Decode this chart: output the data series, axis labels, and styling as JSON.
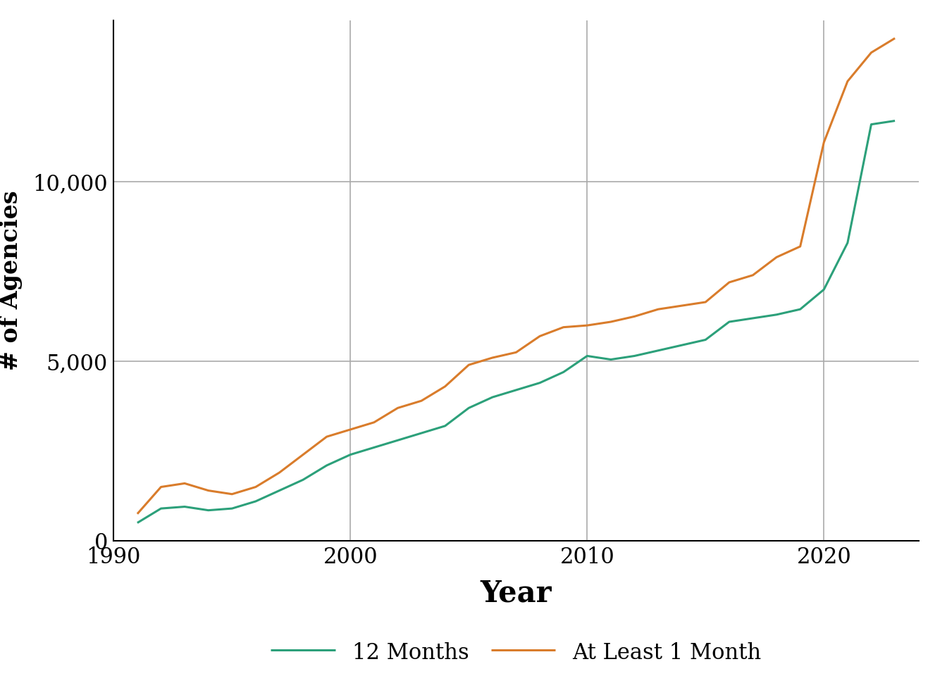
{
  "years_12months": [
    1991,
    1992,
    1993,
    1994,
    1995,
    1996,
    1997,
    1998,
    1999,
    2000,
    2001,
    2002,
    2003,
    2004,
    2005,
    2006,
    2007,
    2008,
    2009,
    2010,
    2011,
    2012,
    2013,
    2014,
    2015,
    2016,
    2017,
    2018,
    2019,
    2020,
    2021,
    2022,
    2023
  ],
  "values_12months": [
    500,
    900,
    950,
    850,
    900,
    1100,
    1400,
    1700,
    2100,
    2400,
    2600,
    2800,
    3000,
    3200,
    3700,
    4000,
    4200,
    4400,
    4700,
    5150,
    5050,
    5150,
    5300,
    5450,
    5600,
    6100,
    6200,
    6300,
    6450,
    7000,
    8300,
    11600,
    11700
  ],
  "years_atleast": [
    1991,
    1992,
    1993,
    1994,
    1995,
    1996,
    1997,
    1998,
    1999,
    2000,
    2001,
    2002,
    2003,
    2004,
    2005,
    2006,
    2007,
    2008,
    2009,
    2010,
    2011,
    2012,
    2013,
    2014,
    2015,
    2016,
    2017,
    2018,
    2019,
    2020,
    2021,
    2022,
    2023
  ],
  "values_atleast": [
    750,
    1500,
    1600,
    1400,
    1300,
    1500,
    1900,
    2400,
    2900,
    3100,
    3300,
    3700,
    3900,
    4300,
    4900,
    5100,
    5250,
    5700,
    5950,
    6000,
    6100,
    6250,
    6450,
    6550,
    6650,
    7200,
    7400,
    7900,
    8200,
    11100,
    12800,
    13600,
    14000
  ],
  "color_12months": "#2ca07a",
  "color_atleast": "#d97c2b",
  "xlabel": "Year",
  "ylabel": "# of Agencies",
  "xlim": [
    1990,
    2024
  ],
  "ylim": [
    0,
    14500
  ],
  "yticks": [
    0,
    5000,
    10000
  ],
  "xticks": [
    1990,
    2000,
    2010,
    2020
  ],
  "grid_color": "#aaaaaa",
  "legend_label_12": "12 Months",
  "legend_label_at": "At Least 1 Month",
  "line_width": 2.2,
  "font_family": "DejaVu Serif"
}
